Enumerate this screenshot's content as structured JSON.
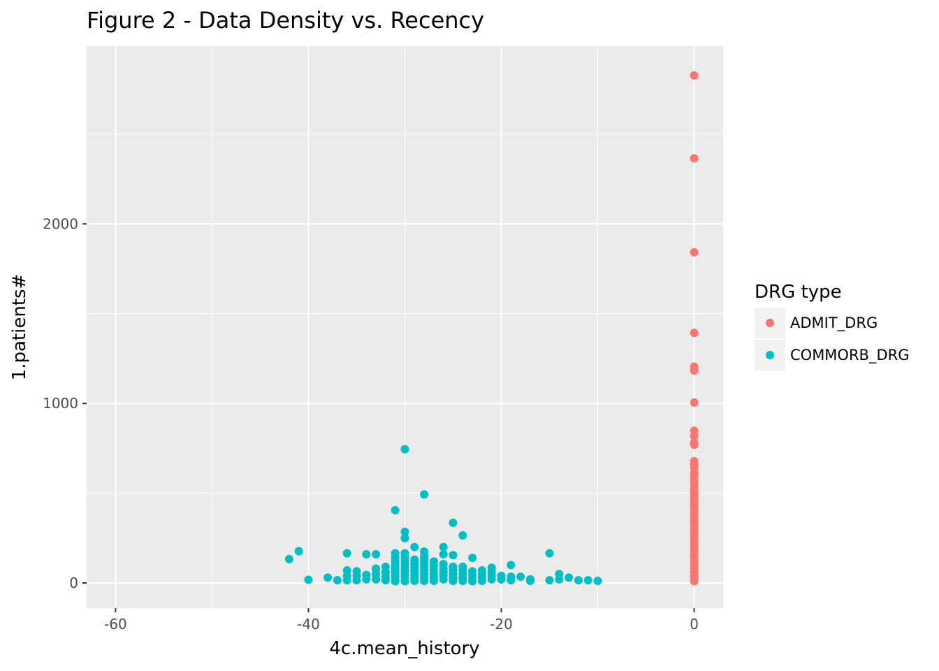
{
  "chart_data": {
    "type": "scatter",
    "title": "Figure 2 - Data Density vs. Recency",
    "xlabel": "4c.mean_history",
    "ylabel": "1.patients#",
    "xlim": [
      -63,
      3
    ],
    "ylim": [
      -140,
      2990
    ],
    "x_ticks": [
      -60,
      -40,
      -20,
      0
    ],
    "x_tick_labels": [
      "-60",
      "-40",
      "-20",
      "0"
    ],
    "y_ticks": [
      0,
      1000,
      2000
    ],
    "y_tick_labels": [
      "0",
      "1000",
      "2000"
    ],
    "grid": true,
    "legend": {
      "title": "DRG type",
      "position": "right"
    },
    "series": [
      {
        "name": "ADMIT_DRG",
        "color": "#F8766D",
        "points": [
          [
            0,
            2827
          ],
          [
            0,
            2365
          ],
          [
            0,
            1842
          ],
          [
            0,
            1393
          ],
          [
            0,
            1205
          ],
          [
            0,
            1183
          ],
          [
            0,
            1005
          ],
          [
            0,
            848
          ],
          [
            0,
            817
          ],
          [
            0,
            780
          ],
          [
            0,
            770
          ],
          [
            0,
            678
          ],
          [
            0,
            662
          ],
          [
            0,
            640
          ],
          [
            0,
            610
          ],
          [
            0,
            590
          ],
          [
            0,
            565
          ],
          [
            0,
            545
          ],
          [
            0,
            520
          ],
          [
            0,
            500
          ],
          [
            0,
            480
          ],
          [
            0,
            460
          ],
          [
            0,
            440
          ],
          [
            0,
            420
          ],
          [
            0,
            400
          ],
          [
            0,
            380
          ],
          [
            0,
            360
          ],
          [
            0,
            340
          ],
          [
            0,
            320
          ],
          [
            0,
            300
          ],
          [
            0,
            280
          ],
          [
            0,
            260
          ],
          [
            0,
            240
          ],
          [
            0,
            220
          ],
          [
            0,
            200
          ],
          [
            0,
            180
          ],
          [
            0,
            160
          ],
          [
            0,
            140
          ],
          [
            0,
            120
          ],
          [
            0,
            100
          ],
          [
            0,
            80
          ],
          [
            0,
            60
          ],
          [
            0,
            40
          ],
          [
            0,
            25
          ],
          [
            0,
            10
          ]
        ]
      },
      {
        "name": "COMMORB_DRG",
        "color": "#00BFC4",
        "points": [
          [
            -42,
            133
          ],
          [
            -41,
            177
          ],
          [
            -40,
            18
          ],
          [
            -38,
            30
          ],
          [
            -37,
            15
          ],
          [
            -36,
            165
          ],
          [
            -36,
            70
          ],
          [
            -36,
            40
          ],
          [
            -36,
            15
          ],
          [
            -35,
            65
          ],
          [
            -35,
            40
          ],
          [
            -35,
            15
          ],
          [
            -34,
            160
          ],
          [
            -34,
            45
          ],
          [
            -34,
            20
          ],
          [
            -33,
            160
          ],
          [
            -33,
            80
          ],
          [
            -33,
            50
          ],
          [
            -33,
            20
          ],
          [
            -32,
            90
          ],
          [
            -32,
            60
          ],
          [
            -32,
            35
          ],
          [
            -32,
            15
          ],
          [
            -31,
            405
          ],
          [
            -31,
            165
          ],
          [
            -31,
            140
          ],
          [
            -31,
            120
          ],
          [
            -31,
            100
          ],
          [
            -31,
            80
          ],
          [
            -31,
            60
          ],
          [
            -31,
            40
          ],
          [
            -31,
            20
          ],
          [
            -31,
            10
          ],
          [
            -30,
            745
          ],
          [
            -30,
            285
          ],
          [
            -30,
            250
          ],
          [
            -30,
            165
          ],
          [
            -30,
            145
          ],
          [
            -30,
            125
          ],
          [
            -30,
            105
          ],
          [
            -30,
            85
          ],
          [
            -30,
            65
          ],
          [
            -30,
            45
          ],
          [
            -30,
            25
          ],
          [
            -30,
            10
          ],
          [
            -29,
            200
          ],
          [
            -29,
            130
          ],
          [
            -29,
            110
          ],
          [
            -29,
            90
          ],
          [
            -29,
            70
          ],
          [
            -29,
            50
          ],
          [
            -29,
            30
          ],
          [
            -29,
            12
          ],
          [
            -28,
            493
          ],
          [
            -28,
            175
          ],
          [
            -28,
            150
          ],
          [
            -28,
            130
          ],
          [
            -28,
            110
          ],
          [
            -28,
            90
          ],
          [
            -28,
            70
          ],
          [
            -28,
            50
          ],
          [
            -28,
            30
          ],
          [
            -28,
            12
          ],
          [
            -27,
            120
          ],
          [
            -27,
            95
          ],
          [
            -27,
            70
          ],
          [
            -27,
            50
          ],
          [
            -27,
            30
          ],
          [
            -27,
            12
          ],
          [
            -26,
            200
          ],
          [
            -26,
            160
          ],
          [
            -26,
            105
          ],
          [
            -26,
            80
          ],
          [
            -26,
            60
          ],
          [
            -26,
            40
          ],
          [
            -26,
            20
          ],
          [
            -25,
            335
          ],
          [
            -25,
            155
          ],
          [
            -25,
            90
          ],
          [
            -25,
            70
          ],
          [
            -25,
            50
          ],
          [
            -25,
            30
          ],
          [
            -25,
            12
          ],
          [
            -24,
            265
          ],
          [
            -24,
            90
          ],
          [
            -24,
            70
          ],
          [
            -24,
            50
          ],
          [
            -24,
            30
          ],
          [
            -24,
            12
          ],
          [
            -23,
            140
          ],
          [
            -23,
            65
          ],
          [
            -23,
            45
          ],
          [
            -23,
            25
          ],
          [
            -23,
            10
          ],
          [
            -22,
            70
          ],
          [
            -22,
            50
          ],
          [
            -22,
            30
          ],
          [
            -22,
            12
          ],
          [
            -21,
            85
          ],
          [
            -21,
            60
          ],
          [
            -21,
            40
          ],
          [
            -21,
            20
          ],
          [
            -20,
            40
          ],
          [
            -20,
            20
          ],
          [
            -19,
            100
          ],
          [
            -19,
            35
          ],
          [
            -19,
            15
          ],
          [
            -18,
            35
          ],
          [
            -17,
            20
          ],
          [
            -17,
            12
          ],
          [
            -15,
            165
          ],
          [
            -15,
            15
          ],
          [
            -14,
            50
          ],
          [
            -14,
            20
          ],
          [
            -13,
            30
          ],
          [
            -12,
            15
          ],
          [
            -11,
            15
          ],
          [
            -10,
            12
          ]
        ]
      }
    ]
  }
}
